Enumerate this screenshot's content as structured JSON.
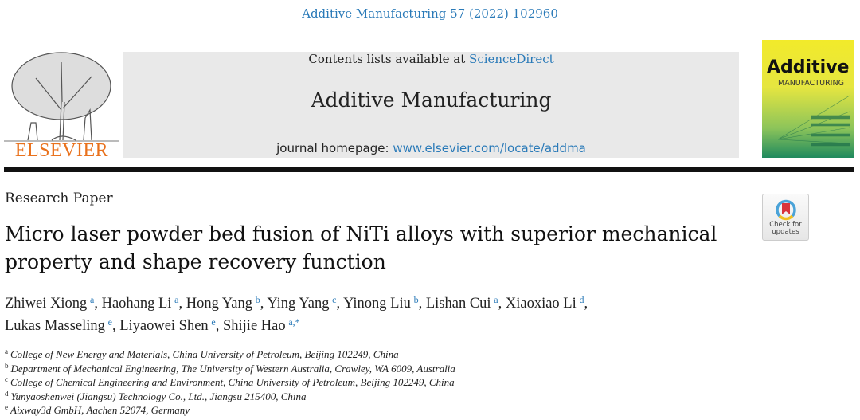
{
  "header": {
    "journal_reference": "Additive Manufacturing 57 (2022) 102960",
    "contents_prefix": "Contents lists available at ",
    "contents_link": "ScienceDirect",
    "journal_name": "Additive Manufacturing",
    "homepage_prefix": "journal homepage: ",
    "homepage_link": "www.elsevier.com/locate/addma",
    "publisher_logo": "ELSEVIER",
    "cover_title_1": "Additive",
    "cover_title_2": "MANUFACTURING"
  },
  "article": {
    "type": "Research Paper",
    "title": "Micro laser powder bed fusion of NiTi alloys with superior mechanical property and shape recovery function",
    "check_updates": "Check for updates",
    "authors": [
      {
        "name": "Zhiwei Xiong",
        "aff": "a"
      },
      {
        "name": "Haohang Li",
        "aff": "a"
      },
      {
        "name": "Hong Yang",
        "aff": "b"
      },
      {
        "name": "Ying Yang",
        "aff": "c"
      },
      {
        "name": "Yinong Liu",
        "aff": "b"
      },
      {
        "name": "Lishan Cui",
        "aff": "a"
      },
      {
        "name": "Xiaoxiao Li",
        "aff": "d"
      },
      {
        "name": "Lukas Masseling",
        "aff": "e"
      },
      {
        "name": "Liyaowei Shen",
        "aff": "e"
      },
      {
        "name": "Shijie Hao",
        "aff": "a,*"
      }
    ],
    "affiliations": [
      {
        "key": "a",
        "text": "College of New Energy and Materials, China University of Petroleum, Beijing 102249, China"
      },
      {
        "key": "b",
        "text": "Department of Mechanical Engineering, The University of Western Australia, Crawley, WA 6009, Australia"
      },
      {
        "key": "c",
        "text": "College of Chemical Engineering and Environment, China University of Petroleum, Beijing 102249, China"
      },
      {
        "key": "d",
        "text": "Yunyaoshenwei (Jiangsu) Technology Co., Ltd., Jiangsu 215400, China"
      },
      {
        "key": "e",
        "text": "Aixway3d GmbH, Aachen 52074, Germany"
      }
    ]
  },
  "colors": {
    "link": "#2a7ab8",
    "elsevier": "#e9711c",
    "header_box": "#e9e9e9"
  }
}
